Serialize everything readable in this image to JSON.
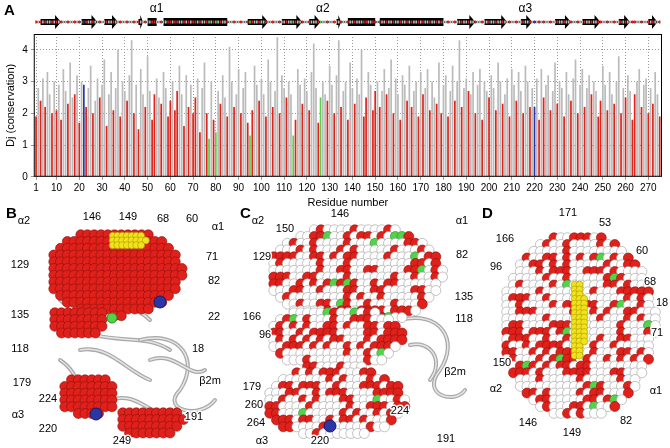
{
  "chart_data": {
    "type": "bar",
    "panel_label": "A",
    "x_label": "Residue number",
    "y_label": "Dj (conservation)",
    "xlim": [
      0,
      276
    ],
    "xticks": [
      1,
      10,
      20,
      30,
      40,
      50,
      60,
      70,
      80,
      90,
      100,
      110,
      120,
      130,
      140,
      150,
      160,
      170,
      180,
      190,
      200,
      210,
      220,
      230,
      240,
      250,
      260,
      270
    ],
    "ylim": [
      0,
      4.5
    ],
    "yticks": [
      0,
      1,
      2,
      3,
      4
    ],
    "grid": true,
    "x": [
      1,
      2,
      3,
      4,
      5,
      6,
      7,
      8,
      9,
      10,
      11,
      12,
      13,
      14,
      15,
      16,
      17,
      18,
      19,
      20,
      21,
      22,
      23,
      24,
      25,
      26,
      27,
      28,
      29,
      30,
      31,
      32,
      33,
      34,
      35,
      36,
      37,
      38,
      39,
      40,
      41,
      42,
      43,
      44,
      45,
      46,
      47,
      48,
      49,
      50,
      51,
      52,
      53,
      54,
      55,
      56,
      57,
      58,
      59,
      60,
      61,
      62,
      63,
      64,
      65,
      66,
      67,
      68,
      69,
      70,
      71,
      72,
      73,
      74,
      75,
      76,
      77,
      78,
      79,
      80,
      81,
      82,
      83,
      84,
      85,
      86,
      87,
      88,
      89,
      90,
      91,
      92,
      93,
      94,
      95,
      96,
      97,
      98,
      99,
      100,
      101,
      102,
      103,
      104,
      105,
      106,
      107,
      108,
      109,
      110,
      111,
      112,
      113,
      114,
      115,
      116,
      117,
      118,
      119,
      120,
      121,
      122,
      123,
      124,
      125,
      126,
      127,
      128,
      129,
      130,
      131,
      132,
      133,
      134,
      135,
      136,
      137,
      138,
      139,
      140,
      141,
      142,
      143,
      144,
      145,
      146,
      147,
      148,
      149,
      150,
      151,
      152,
      153,
      154,
      155,
      156,
      157,
      158,
      159,
      160,
      161,
      162,
      163,
      164,
      165,
      166,
      167,
      168,
      169,
      170,
      171,
      172,
      173,
      174,
      175,
      176,
      177,
      178,
      179,
      180,
      181,
      182,
      183,
      184,
      185,
      186,
      187,
      188,
      189,
      190,
      191,
      192,
      193,
      194,
      195,
      196,
      197,
      198,
      199,
      200,
      201,
      202,
      203,
      204,
      205,
      206,
      207,
      208,
      209,
      210,
      211,
      212,
      213,
      214,
      215,
      216,
      217,
      218,
      219,
      220,
      221,
      222,
      223,
      224,
      225,
      226,
      227,
      228,
      229,
      230,
      231,
      232,
      233,
      234,
      235,
      236,
      237,
      238,
      239,
      240,
      241,
      242,
      243,
      244,
      245,
      246,
      247,
      248,
      249,
      250,
      251,
      252,
      253,
      254,
      255,
      256,
      257,
      258,
      259,
      260,
      261,
      262,
      263,
      264,
      265,
      266,
      267,
      268,
      269,
      270,
      271,
      272,
      273,
      274,
      275
    ],
    "values": [
      1.9,
      2.8,
      2.4,
      3.1,
      2.2,
      3.3,
      2.6,
      2.0,
      3.0,
      2.1,
      2.9,
      1.8,
      3.4,
      2.7,
      2.3,
      3.6,
      2.5,
      2.6,
      3.2,
      1.7,
      3.0,
      2.9,
      2.2,
      2.8,
      3.5,
      2.0,
      2.4,
      3.1,
      2.5,
      2.9,
      3.7,
      1.6,
      2.6,
      3.3,
      2.1,
      2.8,
      4.0,
      1.9,
      3.0,
      2.7,
      2.4,
      3.2,
      4.3,
      2.0,
      2.9,
      1.5,
      3.4,
      2.6,
      2.2,
      3.8,
      2.7,
      1.8,
      2.6,
      3.1,
      2.5,
      2.3,
      3.3,
      2.8,
      1.9,
      2.4,
      3.0,
      2.1,
      2.7,
      3.5,
      2.6,
      1.6,
      3.2,
      2.2,
      2.9,
      2.0,
      2.5,
      3.1,
      1.4,
      2.8,
      3.6,
      2.0,
      1.2,
      3.0,
      1.8,
      1.4,
      2.7,
      2.3,
      3.2,
      2.5,
      1.9,
      4.1,
      3.0,
      2.2,
      2.6,
      3.4,
      2.0,
      2.8,
      3.3,
      1.7,
      1.3,
      2.1,
      3.5,
      2.9,
      2.4,
      3.1,
      2.6,
      1.9,
      3.7,
      3.0,
      2.2,
      2.7,
      4.4,
      2.0,
      3.2,
      2.8,
      2.5,
      3.0,
      2.6,
      1.3,
      1.8,
      3.4,
      2.9,
      2.3,
      3.1,
      2.7,
      2.1,
      3.3,
      4.2,
      2.8,
      1.7,
      2.5,
      3.0,
      2.6,
      2.4,
      3.5,
      2.9,
      2.0,
      3.2,
      4.3,
      2.2,
      2.7,
      3.0,
      1.8,
      3.6,
      2.8,
      2.3,
      3.1,
      2.6,
      4.0,
      1.9,
      2.5,
      3.3,
      2.9,
      2.1,
      2.7,
      3.0,
      2.2,
      2.7,
      3.4,
      2.6,
      2.8,
      3.7,
      2.0,
      3.1,
      2.6,
      1.8,
      3.2,
      2.9,
      2.4,
      3.5,
      2.2,
      2.7,
      3.0,
      1.9,
      3.3,
      2.6,
      2.8,
      3.4,
      2.1,
      3.0,
      2.5,
      2.3,
      3.6,
      2.0,
      2.9,
      3.2,
      1.9,
      2.7,
      3.5,
      2.4,
      3.0,
      4.3,
      2.2,
      2.8,
      3.1,
      2.7,
      2.6,
      3.3,
      2.0,
      2.9,
      3.4,
      1.8,
      3.0,
      2.7,
      2.5,
      3.2,
      2.8,
      2.1,
      3.6,
      3.0,
      2.3,
      2.6,
      3.1,
      1.9,
      3.4,
      2.9,
      2.4,
      3.3,
      2.7,
      2.0,
      3.5,
      3.0,
      2.2,
      2.8,
      2.2,
      3.1,
      1.8,
      3.4,
      2.5,
      2.9,
      3.2,
      2.1,
      2.7,
      3.6,
      2.3,
      3.0,
      2.8,
      1.9,
      3.3,
      2.6,
      2.4,
      3.1,
      3.7,
      2.0,
      2.9,
      3.4,
      2.2,
      2.8,
      3.2,
      2.6,
      3.0,
      2.7,
      1.9,
      2.4,
      3.5,
      2.9,
      2.1,
      3.3,
      2.6,
      2.3,
      3.0,
      3.8,
      2.0,
      2.8,
      2.5,
      3.2,
      2.7,
      1.8,
      2.6,
      3.0,
      3.4,
      2.2,
      2.9,
      3.1,
      2.0,
      2.8,
      2.3,
      3.3,
      2.6,
      1.9
    ],
    "colors": [
      "#e2231a",
      "#bbb",
      "#e2231a",
      "#bbb",
      "#e2231a",
      "#bbb",
      "#bbb",
      "#e2231a",
      "#bbb",
      "#e2231a",
      "#bbb",
      "#e2231a",
      "#bbb",
      "#bbb",
      "#e2231a",
      "#bbb",
      "#bbb",
      "#e2231a",
      "#bbb",
      "#e2231a",
      "#bbb",
      "#2a35a6",
      "#e2231a",
      "#bbb",
      "#bbb",
      "#e2231a",
      "#bbb",
      "#bbb",
      "#e2231a",
      "#bbb",
      "#bbb",
      "#e2231a",
      "#bbb",
      "#bbb",
      "#e2231a",
      "#bbb",
      "#bbb",
      "#e2231a",
      "#bbb",
      "#bbb",
      "#e2231a",
      "#bbb",
      "#bbb",
      "#e2231a",
      "#bbb",
      "#e2231a",
      "#bbb",
      "#bbb",
      "#e2231a",
      "#bbb",
      "#bbb",
      "#e2231a",
      "#e2231a",
      "#bbb",
      "#bbb",
      "#e2231a",
      "#bbb",
      "#bbb",
      "#e2231a",
      "#e2231a",
      "#bbb",
      "#e2231a",
      "#e2231a",
      "#bbb",
      "#bbb",
      "#e2231a",
      "#bbb",
      "#e2231a",
      "#bbb",
      "#e2231a",
      "#e2231a",
      "#bbb",
      "#e2231a",
      "#bbb",
      "#bbb",
      "#e2231a",
      "#52d34a",
      "#bbb",
      "#e2231a",
      "#52d34a",
      "#bbb",
      "#e2231a",
      "#bbb",
      "#bbb",
      "#e2231a",
      "#bbb",
      "#bbb",
      "#e2231a",
      "#bbb",
      "#bbb",
      "#e2231a",
      "#bbb",
      "#bbb",
      "#e2231a",
      "#52d34a",
      "#e2231a",
      "#bbb",
      "#bbb",
      "#e2231a",
      "#bbb",
      "#bbb",
      "#e2231a",
      "#bbb",
      "#bbb",
      "#e2231a",
      "#bbb",
      "#bbb",
      "#e2231a",
      "#bbb",
      "#bbb",
      "#e2231a",
      "#bbb",
      "#bbb",
      "#52d34a",
      "#e2231a",
      "#bbb",
      "#bbb",
      "#e2231a",
      "#bbb",
      "#bbb",
      "#e2231a",
      "#bbb",
      "#bbb",
      "#bbb",
      "#e2231a",
      "#52d34a",
      "#bbb",
      "#bbb",
      "#e2231a",
      "#bbb",
      "#bbb",
      "#e2231a",
      "#bbb",
      "#bbb",
      "#e2231a",
      "#bbb",
      "#bbb",
      "#e2231a",
      "#bbb",
      "#bbb",
      "#e2231a",
      "#bbb",
      "#bbb",
      "#bbb",
      "#e2231a",
      "#e2231a",
      "#bbb",
      "#bbb",
      "#e2231a",
      "#e2231a",
      "#bbb",
      "#e2231a",
      "#bbb",
      "#bbb",
      "#e2231a",
      "#bbb",
      "#bbb",
      "#e2231a",
      "#bbb",
      "#bbb",
      "#e2231a",
      "#bbb",
      "#bbb",
      "#e2231a",
      "#bbb",
      "#e2231a",
      "#bbb",
      "#bbb",
      "#e2231a",
      "#bbb",
      "#e2231a",
      "#bbb",
      "#bbb",
      "#e2231a",
      "#bbb",
      "#bbb",
      "#e2231a",
      "#bbb",
      "#e2231a",
      "#bbb",
      "#bbb",
      "#e2231a",
      "#bbb",
      "#bbb",
      "#e2231a",
      "#bbb",
      "#bbb",
      "#e2231a",
      "#bbb",
      "#bbb",
      "#e2231a",
      "#bbb",
      "#bbb",
      "#e2231a",
      "#bbb",
      "#bbb",
      "#e2231a",
      "#bbb",
      "#bbb",
      "#e2231a",
      "#bbb",
      "#bbb",
      "#e2231a",
      "#bbb",
      "#bbb",
      "#e2231a",
      "#bbb",
      "#bbb",
      "#e2231a",
      "#bbb",
      "#bbb",
      "#e2231a",
      "#bbb",
      "#bbb",
      "#e2231a",
      "#bbb",
      "#bbb",
      "#e2231a",
      "#bbb",
      "#2a35a6",
      "#bbb",
      "#e2231a",
      "#bbb",
      "#e2231a",
      "#bbb",
      "#bbb",
      "#e2231a",
      "#bbb",
      "#bbb",
      "#e2231a",
      "#bbb",
      "#bbb",
      "#e2231a",
      "#bbb",
      "#bbb",
      "#e2231a",
      "#bbb",
      "#bbb",
      "#e2231a",
      "#bbb",
      "#bbb",
      "#e2231a",
      "#bbb",
      "#bbb",
      "#e2231a",
      "#bbb",
      "#bbb",
      "#e2231a",
      "#e2231a",
      "#bbb",
      "#bbb",
      "#e2231a",
      "#bbb",
      "#bbb",
      "#e2231a",
      "#bbb",
      "#bbb",
      "#e2231a",
      "#bbb",
      "#e2231a",
      "#bbb",
      "#bbb",
      "#e2231a",
      "#e2231a",
      "#bbb",
      "#bbb",
      "#e2231a",
      "#bbb",
      "#bbb",
      "#e2231a",
      "#bbb",
      "#e2231a",
      "#bbb",
      "#bbb",
      "#e2231a"
    ],
    "secondary_structure": {
      "strands": [
        [
          3,
          12
        ],
        [
          21,
          28
        ],
        [
          31,
          37
        ],
        [
          46,
          48
        ],
        [
          94,
          103
        ],
        [
          109,
          118
        ],
        [
          121,
          126
        ],
        [
          133,
          135
        ],
        [
          186,
          194
        ],
        [
          198,
          208
        ],
        [
          214,
          219
        ],
        [
          229,
          236
        ],
        [
          241,
          249
        ],
        [
          257,
          262
        ],
        [
          270,
          274
        ]
      ],
      "helices": [
        [
          50,
          54
        ],
        [
          57,
          85
        ],
        [
          138,
          150
        ],
        [
          152,
          180
        ]
      ]
    },
    "domain_labels": [
      {
        "text": "α1",
        "residue": 54
      },
      {
        "text": "α2",
        "residue": 127
      },
      {
        "text": "α3",
        "residue": 216
      }
    ]
  },
  "structures": [
    {
      "panel": "B",
      "labels": [
        "α2",
        "146",
        "149",
        "68",
        "60",
        "α1",
        "129",
        "71",
        "82",
        "135",
        "22",
        "118",
        "18",
        "179",
        "224",
        "α3",
        "220",
        "249",
        "191",
        "β2m"
      ]
    },
    {
      "panel": "C",
      "labels": [
        "α2",
        "150",
        "146",
        "α1",
        "129",
        "82",
        "135",
        "118",
        "166",
        "96",
        "179",
        "260",
        "264",
        "224",
        "220",
        "α3",
        "191",
        "β2m"
      ]
    },
    {
      "panel": "D",
      "labels": [
        "171",
        "53",
        "166",
        "60",
        "96",
        "68",
        "18",
        "71",
        "150",
        "α2",
        "146",
        "149",
        "82",
        "α1"
      ]
    }
  ]
}
